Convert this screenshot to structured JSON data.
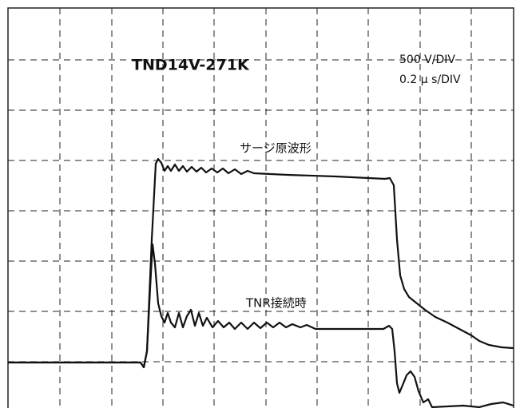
{
  "title": "TND14V-271K",
  "scale": {
    "voltage": "500  V/DIV",
    "time": "0.2 μ s/DIV"
  },
  "traces": [
    {
      "label": "サージ原波形"
    },
    {
      "label": "TNR接続時"
    }
  ]
}
